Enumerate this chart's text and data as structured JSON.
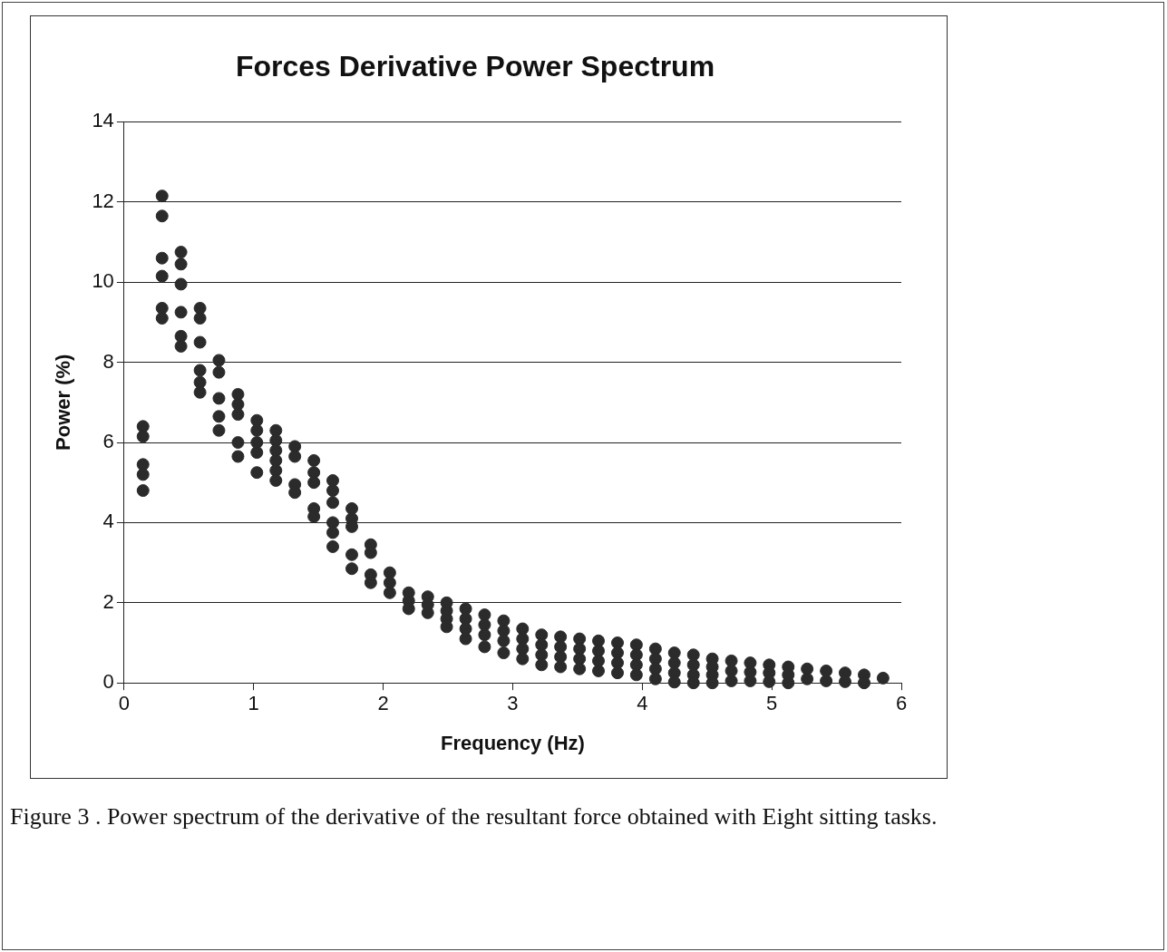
{
  "chart_data": {
    "type": "scatter",
    "title": "Forces Derivative Power Spectrum",
    "xlabel": "Frequency (Hz)",
    "ylabel": "Power (%)",
    "annotations": [
      "Figure 3 . Power spectrum of the derivative of the resultant force obtained with Eight sitting tasks."
    ],
    "xlim": [
      0,
      6
    ],
    "xticks": [
      0,
      1,
      2,
      3,
      4,
      5,
      6
    ],
    "ylim": [
      0,
      14
    ],
    "yticks": [
      0,
      2,
      4,
      6,
      8,
      10,
      12,
      14
    ],
    "grid": "y",
    "marker": "circle",
    "legend": false,
    "color": "#2b2b2b",
    "x": [
      0.146,
      0.146,
      0.146,
      0.146,
      0.146,
      0.293,
      0.293,
      0.293,
      0.293,
      0.293,
      0.293,
      0.439,
      0.439,
      0.439,
      0.439,
      0.439,
      0.439,
      0.586,
      0.586,
      0.586,
      0.586,
      0.586,
      0.586,
      0.732,
      0.732,
      0.732,
      0.732,
      0.732,
      0.879,
      0.879,
      0.879,
      0.879,
      0.879,
      1.025,
      1.025,
      1.025,
      1.025,
      1.025,
      1.172,
      1.172,
      1.172,
      1.172,
      1.172,
      1.172,
      1.318,
      1.318,
      1.318,
      1.318,
      1.465,
      1.465,
      1.465,
      1.465,
      1.465,
      1.611,
      1.611,
      1.611,
      1.611,
      1.611,
      1.611,
      1.758,
      1.758,
      1.758,
      1.758,
      1.758,
      1.904,
      1.904,
      1.904,
      1.904,
      2.051,
      2.051,
      2.051,
      2.197,
      2.197,
      2.197,
      2.344,
      2.344,
      2.344,
      2.49,
      2.49,
      2.49,
      2.49,
      2.637,
      2.637,
      2.637,
      2.637,
      2.783,
      2.783,
      2.783,
      2.783,
      2.93,
      2.93,
      2.93,
      2.93,
      3.076,
      3.076,
      3.076,
      3.076,
      3.223,
      3.223,
      3.223,
      3.223,
      3.369,
      3.369,
      3.369,
      3.369,
      3.516,
      3.516,
      3.516,
      3.516,
      3.662,
      3.662,
      3.662,
      3.662,
      3.809,
      3.809,
      3.809,
      3.809,
      3.955,
      3.955,
      3.955,
      3.955,
      4.102,
      4.102,
      4.102,
      4.102,
      4.248,
      4.248,
      4.248,
      4.248,
      4.395,
      4.395,
      4.395,
      4.395,
      4.541,
      4.541,
      4.541,
      4.541,
      4.688,
      4.688,
      4.688,
      4.834,
      4.834,
      4.834,
      4.98,
      4.98,
      4.98,
      5.127,
      5.127,
      5.127,
      5.273,
      5.273,
      5.42,
      5.42,
      5.566,
      5.566,
      5.713,
      5.713,
      5.859
    ],
    "values": [
      6.4,
      6.15,
      5.45,
      5.2,
      4.8,
      12.15,
      11.65,
      10.6,
      10.15,
      9.35,
      9.1,
      10.75,
      10.45,
      9.95,
      9.25,
      8.65,
      8.4,
      9.35,
      9.1,
      8.5,
      7.8,
      7.5,
      7.25,
      8.05,
      7.75,
      7.1,
      6.65,
      6.3,
      7.2,
      6.95,
      6.7,
      6.0,
      5.65,
      6.55,
      6.3,
      6.0,
      5.75,
      5.25,
      6.3,
      6.05,
      5.8,
      5.55,
      5.3,
      5.05,
      5.9,
      5.65,
      4.95,
      4.75,
      5.55,
      5.25,
      5.0,
      4.35,
      4.15,
      5.05,
      4.8,
      4.5,
      4.0,
      3.75,
      3.4,
      4.35,
      4.1,
      3.9,
      3.2,
      2.85,
      3.45,
      3.25,
      2.7,
      2.5,
      2.75,
      2.5,
      2.25,
      2.25,
      2.05,
      1.85,
      2.15,
      1.95,
      1.75,
      2.0,
      1.8,
      1.6,
      1.4,
      1.85,
      1.6,
      1.35,
      1.1,
      1.7,
      1.45,
      1.2,
      0.9,
      1.55,
      1.3,
      1.05,
      0.75,
      1.35,
      1.1,
      0.85,
      0.6,
      1.2,
      0.95,
      0.7,
      0.45,
      1.15,
      0.9,
      0.65,
      0.4,
      1.1,
      0.85,
      0.6,
      0.35,
      1.05,
      0.8,
      0.55,
      0.3,
      1.0,
      0.75,
      0.5,
      0.25,
      0.95,
      0.7,
      0.45,
      0.2,
      0.85,
      0.6,
      0.35,
      0.1,
      0.75,
      0.5,
      0.25,
      0.02,
      0.7,
      0.45,
      0.2,
      0,
      0.6,
      0.4,
      0.2,
      0,
      0.55,
      0.3,
      0.05,
      0.5,
      0.27,
      0.05,
      0.45,
      0.25,
      0.03,
      0.4,
      0.2,
      0,
      0.35,
      0.1,
      0.3,
      0.05,
      0.25,
      0.03,
      0.2,
      0,
      0.12
    ]
  }
}
